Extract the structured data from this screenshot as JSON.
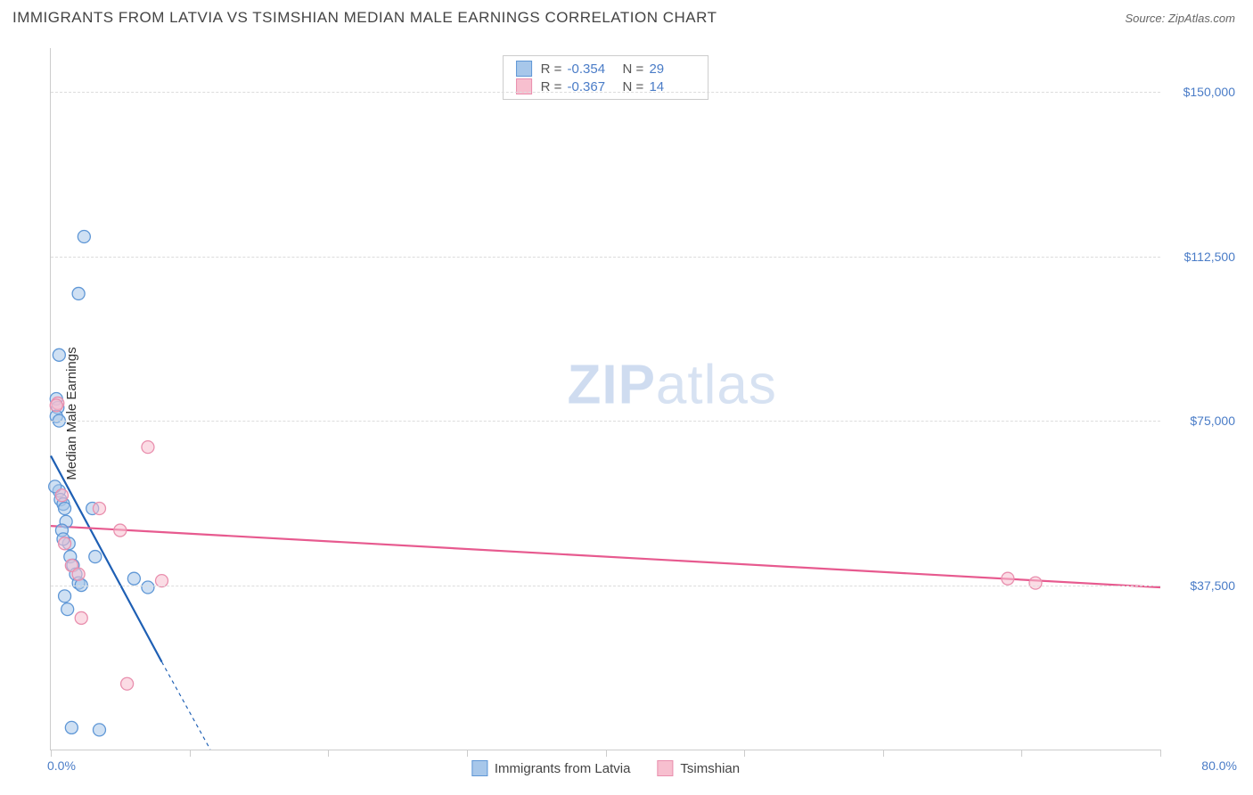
{
  "header": {
    "title": "IMMIGRANTS FROM LATVIA VS TSIMSHIAN MEDIAN MALE EARNINGS CORRELATION CHART",
    "source_prefix": "Source: ",
    "source_name": "ZipAtlas.com"
  },
  "chart": {
    "type": "scatter",
    "y_label": "Median Male Earnings",
    "x_min_label": "0.0%",
    "x_max_label": "80.0%",
    "xlim": [
      0,
      80
    ],
    "ylim": [
      0,
      160000
    ],
    "y_ticks": [
      {
        "v": 37500,
        "label": "$37,500"
      },
      {
        "v": 75000,
        "label": "$75,000"
      },
      {
        "v": 112500,
        "label": "$112,500"
      },
      {
        "v": 150000,
        "label": "$150,000"
      }
    ],
    "x_ticks": [
      0,
      10,
      20,
      30,
      40,
      50,
      60,
      70,
      80
    ],
    "background_color": "#ffffff",
    "grid_color": "#dcdcdc",
    "axis_color": "#cccccc",
    "marker_radius": 7,
    "marker_stroke_width": 1.3,
    "trend_line_width": 2.2,
    "series": [
      {
        "id": "latvia",
        "name": "Immigrants from Latvia",
        "fill": "#a7c7ea",
        "stroke": "#5f97d6",
        "fill_opacity": 0.55,
        "line_color": "#1e5fb4",
        "stats": {
          "R": "-0.354",
          "N": "29"
        },
        "points": [
          [
            0.4,
            80000
          ],
          [
            0.5,
            78000
          ],
          [
            0.4,
            76000
          ],
          [
            0.6,
            75000
          ],
          [
            0.6,
            59000
          ],
          [
            0.7,
            57000
          ],
          [
            0.9,
            56000
          ],
          [
            1.0,
            55000
          ],
          [
            1.1,
            52000
          ],
          [
            0.8,
            50000
          ],
          [
            1.3,
            47000
          ],
          [
            1.4,
            44000
          ],
          [
            1.6,
            42000
          ],
          [
            1.8,
            40000
          ],
          [
            2.0,
            38000
          ],
          [
            2.2,
            37500
          ],
          [
            0.6,
            90000
          ],
          [
            2.0,
            104000
          ],
          [
            2.4,
            117000
          ],
          [
            3.0,
            55000
          ],
          [
            3.2,
            44000
          ],
          [
            6.0,
            39000
          ],
          [
            7.0,
            37000
          ],
          [
            1.0,
            35000
          ],
          [
            1.2,
            32000
          ],
          [
            1.5,
            5000
          ],
          [
            3.5,
            4500
          ],
          [
            0.3,
            60000
          ],
          [
            0.9,
            48000
          ]
        ],
        "trend": {
          "x1": 0,
          "y1": 67000,
          "x2_solid": 8,
          "y2_solid": 20000,
          "x2_dash": 11.5,
          "y2_dash": 0
        }
      },
      {
        "id": "tsimshian",
        "name": "Tsimshian",
        "fill": "#f7bfcf",
        "stroke": "#e98fae",
        "fill_opacity": 0.55,
        "line_color": "#e75a8f",
        "stats": {
          "R": "-0.367",
          "N": "14"
        },
        "points": [
          [
            0.5,
            79000
          ],
          [
            0.4,
            78500
          ],
          [
            0.8,
            58000
          ],
          [
            1.0,
            47000
          ],
          [
            1.5,
            42000
          ],
          [
            2.0,
            40000
          ],
          [
            2.2,
            30000
          ],
          [
            3.5,
            55000
          ],
          [
            5.0,
            50000
          ],
          [
            7.0,
            69000
          ],
          [
            8.0,
            38500
          ],
          [
            5.5,
            15000
          ],
          [
            69.0,
            39000
          ],
          [
            71.0,
            38000
          ]
        ],
        "trend": {
          "x1": 0,
          "y1": 51000,
          "x2_solid": 80,
          "y2_solid": 37000
        }
      }
    ],
    "bottom_legend": [
      {
        "swatch_fill": "#a7c7ea",
        "swatch_stroke": "#5f97d6",
        "label": "Immigrants from Latvia"
      },
      {
        "swatch_fill": "#f7bfcf",
        "swatch_stroke": "#e98fae",
        "label": "Tsimshian"
      }
    ]
  },
  "watermark": {
    "bold": "ZIP",
    "rest": "atlas"
  }
}
